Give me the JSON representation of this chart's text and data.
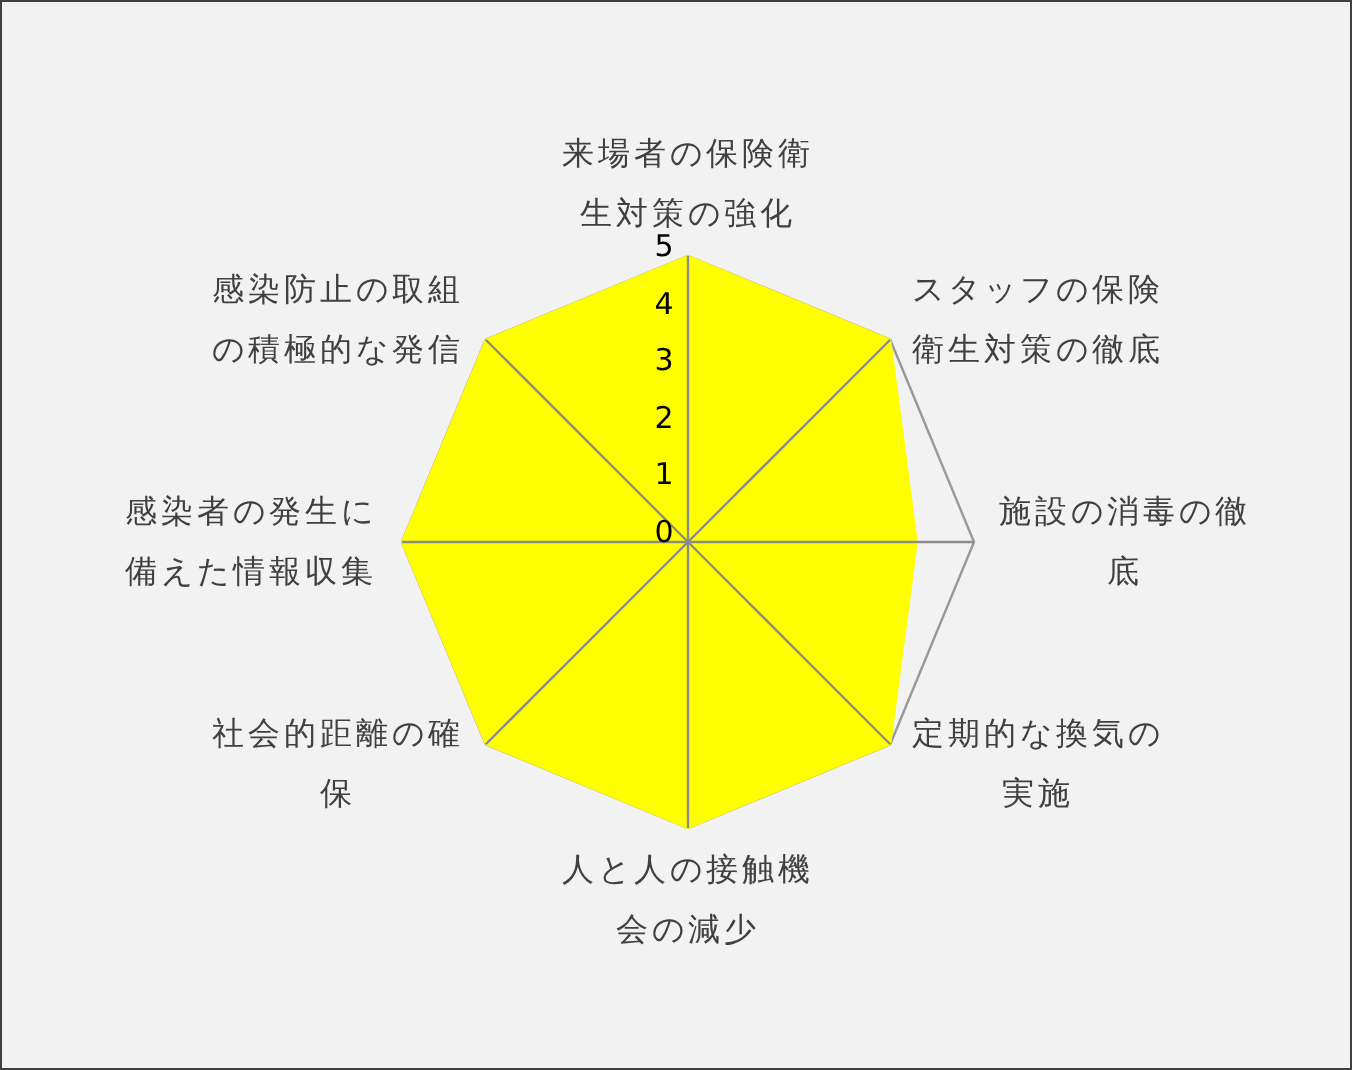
{
  "chart_data": {
    "type": "radar",
    "categories": [
      "来場者の保険衛生対策の強化",
      "スタッフの保険衛生対策の徹底",
      "施設の消毒の徹底",
      "定期的な換気の実施",
      "人と人の接触機会の減少",
      "社会的距離の確保",
      "感染者の発生に備えた情報収集",
      "感染防止の取組の積極的な発信"
    ],
    "series": [
      {
        "color": "#ffff00",
        "values": [
          5,
          5,
          4,
          5,
          5,
          5,
          5,
          5
        ]
      }
    ],
    "ylim": [
      0,
      5
    ],
    "yticks": [
      0,
      1,
      2,
      3,
      4,
      5
    ],
    "grid": true
  }
}
